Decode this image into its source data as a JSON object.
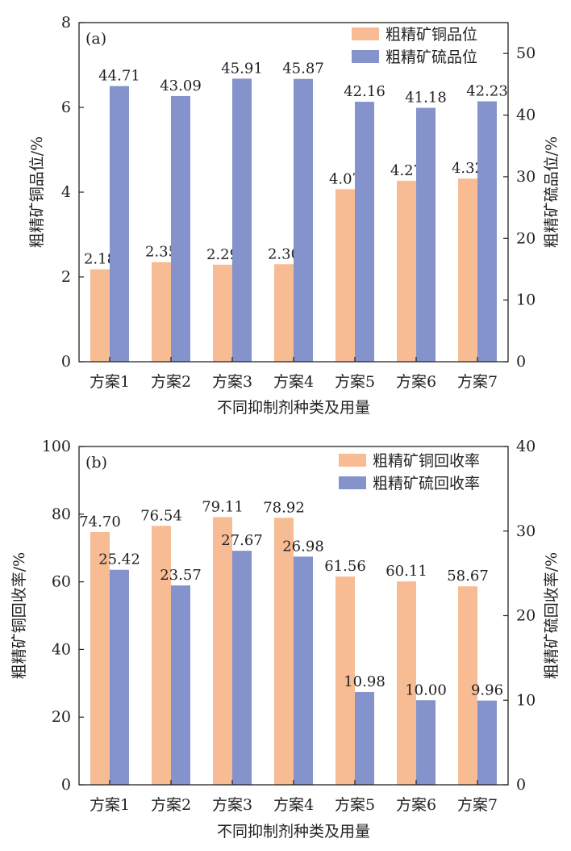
{
  "chart_data": [
    {
      "type": "bar",
      "panel_label": "(a)",
      "categories": [
        "方案1",
        "方案2",
        "方案3",
        "方案4",
        "方案5",
        "方案6",
        "方案7"
      ],
      "xlabel": "不同抑制剂种类及用量",
      "ylabel_left": "粗精矿铜品位/%",
      "ylabel_right": "粗精矿硫品位/%",
      "ylim_left": [
        0,
        8
      ],
      "yticks_left": [
        0,
        2,
        4,
        6,
        8
      ],
      "ylim_right": [
        0,
        55
      ],
      "yticks_right": [
        0,
        10,
        20,
        30,
        40,
        50
      ],
      "series": [
        {
          "name": "粗精矿铜品位",
          "axis": "left",
          "color": "#F7BC94",
          "values": [
            2.18,
            2.35,
            2.29,
            2.3,
            4.07,
            4.27,
            4.32
          ],
          "labels": [
            "2.18",
            "2.35",
            "2.29",
            "2.30",
            "4.07",
            "4.27",
            "4.32"
          ]
        },
        {
          "name": "粗精矿硫品位",
          "axis": "right",
          "color": "#8593CC",
          "values": [
            44.71,
            43.09,
            45.91,
            45.87,
            42.16,
            41.18,
            42.23
          ],
          "labels": [
            "44.71",
            "43.09",
            "45.91",
            "45.87",
            "42.16",
            "41.18",
            "42.23"
          ]
        }
      ],
      "legend_position": "top-right"
    },
    {
      "type": "bar",
      "panel_label": "(b)",
      "categories": [
        "方案1",
        "方案2",
        "方案3",
        "方案4",
        "方案5",
        "方案6",
        "方案7"
      ],
      "xlabel": "不同抑制剂种类及用量",
      "ylabel_left": "粗精矿铜回收率/%",
      "ylabel_right": "粗精矿硫回收率/%",
      "ylim_left": [
        0,
        100
      ],
      "yticks_left": [
        0,
        20,
        40,
        60,
        80,
        100
      ],
      "ylim_right": [
        0,
        40
      ],
      "yticks_right": [
        0,
        10,
        20,
        30,
        40
      ],
      "series": [
        {
          "name": "粗精矿铜回收率",
          "axis": "left",
          "color": "#F7BC94",
          "values": [
            74.7,
            76.54,
            79.11,
            78.92,
            61.56,
            60.11,
            58.67
          ],
          "labels": [
            "74.70",
            "76.54",
            "79.11",
            "78.92",
            "61.56",
            "60.11",
            "58.67"
          ]
        },
        {
          "name": "粗精矿硫回收率",
          "axis": "right",
          "color": "#8593CC",
          "values": [
            25.42,
            23.57,
            27.67,
            26.98,
            10.98,
            10.0,
            9.96
          ],
          "labels": [
            "25.42",
            "23.57",
            "27.67",
            "26.98",
            "10.98",
            "10.00",
            "9.96"
          ]
        }
      ],
      "legend_position": "top-right"
    }
  ]
}
